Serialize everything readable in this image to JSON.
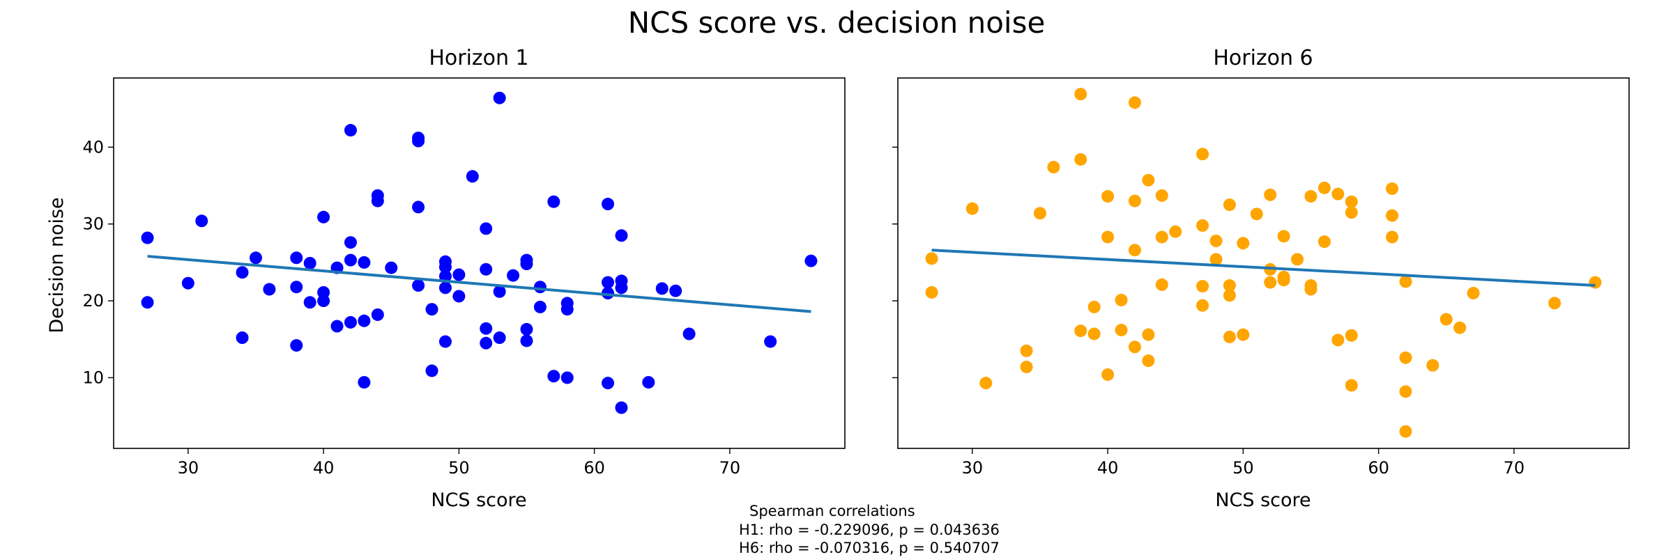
{
  "figure": {
    "title": "NCS score vs. decision noise",
    "footnote": [
      "Spearman correlations",
      "H1: rho = -0.229096, p = 0.043636",
      "H6: rho = -0.070316, p = 0.540707"
    ]
  },
  "chart_data": [
    {
      "type": "scatter",
      "title": "Horizon 1",
      "xlabel": "NCS score",
      "ylabel": "Decision noise",
      "xlim": [
        24.5,
        78.5
      ],
      "ylim": [
        0.8,
        49.0
      ],
      "xticks": [
        30,
        40,
        50,
        60,
        70
      ],
      "yticks": [
        10,
        20,
        30,
        40
      ],
      "point_color": "#0000ff",
      "trend_color": "#1f77b4",
      "trend": {
        "x": [
          27,
          76
        ],
        "y": [
          25.8,
          18.6
        ]
      },
      "points": [
        [
          27,
          28.2
        ],
        [
          27,
          19.8
        ],
        [
          30,
          22.3
        ],
        [
          31,
          30.4
        ],
        [
          34,
          23.7
        ],
        [
          34,
          15.2
        ],
        [
          35,
          25.6
        ],
        [
          36,
          21.5
        ],
        [
          38,
          25.6
        ],
        [
          38,
          21.8
        ],
        [
          38,
          14.2
        ],
        [
          39,
          24.9
        ],
        [
          39,
          19.8
        ],
        [
          40,
          30.9
        ],
        [
          40,
          21.1
        ],
        [
          40,
          20.0
        ],
        [
          41,
          24.3
        ],
        [
          41,
          16.7
        ],
        [
          42,
          42.2
        ],
        [
          42,
          27.6
        ],
        [
          42,
          25.3
        ],
        [
          42,
          17.2
        ],
        [
          43,
          25.0
        ],
        [
          43,
          17.4
        ],
        [
          43,
          9.4
        ],
        [
          44,
          33.7
        ],
        [
          44,
          33.0
        ],
        [
          44,
          18.2
        ],
        [
          45,
          24.3
        ],
        [
          47,
          41.2
        ],
        [
          47,
          40.8
        ],
        [
          47,
          32.2
        ],
        [
          47,
          22.0
        ],
        [
          48,
          18.9
        ],
        [
          48,
          10.9
        ],
        [
          49,
          25.1
        ],
        [
          49,
          24.4
        ],
        [
          49,
          23.2
        ],
        [
          49,
          21.7
        ],
        [
          49,
          14.7
        ],
        [
          50,
          23.4
        ],
        [
          50,
          20.6
        ],
        [
          51,
          36.2
        ],
        [
          52,
          29.4
        ],
        [
          52,
          24.1
        ],
        [
          52,
          16.4
        ],
        [
          52,
          14.5
        ],
        [
          53,
          46.4
        ],
        [
          53,
          21.2
        ],
        [
          53,
          15.2
        ],
        [
          54,
          23.3
        ],
        [
          55,
          25.3
        ],
        [
          55,
          24.8
        ],
        [
          55,
          16.3
        ],
        [
          55,
          14.8
        ],
        [
          56,
          21.8
        ],
        [
          56,
          19.2
        ],
        [
          57,
          32.9
        ],
        [
          57,
          10.2
        ],
        [
          58,
          19.7
        ],
        [
          58,
          18.9
        ],
        [
          58,
          10.0
        ],
        [
          61,
          32.6
        ],
        [
          61,
          22.4
        ],
        [
          61,
          21.0
        ],
        [
          61,
          9.3
        ],
        [
          62,
          28.5
        ],
        [
          62,
          22.6
        ],
        [
          62,
          21.7
        ],
        [
          62,
          6.1
        ],
        [
          64,
          9.4
        ],
        [
          65,
          21.6
        ],
        [
          66,
          21.3
        ],
        [
          67,
          15.7
        ],
        [
          73,
          14.7
        ],
        [
          76,
          25.2
        ]
      ]
    },
    {
      "type": "scatter",
      "title": "Horizon 6",
      "xlabel": "NCS score",
      "ylabel": "",
      "xlim": [
        24.5,
        78.5
      ],
      "ylim": [
        0.8,
        49.0
      ],
      "xticks": [
        30,
        40,
        50,
        60,
        70
      ],
      "yticks": [
        10,
        20,
        30,
        40
      ],
      "point_color": "#ffa500",
      "trend_color": "#1f77b4",
      "trend": {
        "x": [
          27,
          76
        ],
        "y": [
          26.6,
          22.0
        ]
      },
      "points": [
        [
          27,
          25.5
        ],
        [
          27,
          21.1
        ],
        [
          30,
          32.0
        ],
        [
          31,
          9.3
        ],
        [
          34,
          13.5
        ],
        [
          34,
          11.4
        ],
        [
          35,
          31.4
        ],
        [
          36,
          37.4
        ],
        [
          38,
          46.9
        ],
        [
          38,
          38.4
        ],
        [
          38,
          16.1
        ],
        [
          39,
          19.2
        ],
        [
          39,
          15.7
        ],
        [
          40,
          33.6
        ],
        [
          40,
          28.3
        ],
        [
          40,
          10.4
        ],
        [
          41,
          20.1
        ],
        [
          41,
          16.2
        ],
        [
          42,
          45.8
        ],
        [
          42,
          33.0
        ],
        [
          42,
          26.6
        ],
        [
          42,
          14.0
        ],
        [
          43,
          35.7
        ],
        [
          43,
          15.6
        ],
        [
          43,
          12.2
        ],
        [
          44,
          33.7
        ],
        [
          44,
          28.3
        ],
        [
          44,
          22.1
        ],
        [
          45,
          29.0
        ],
        [
          47,
          39.1
        ],
        [
          47,
          29.8
        ],
        [
          47,
          21.9
        ],
        [
          47,
          19.4
        ],
        [
          48,
          27.8
        ],
        [
          48,
          25.4
        ],
        [
          49,
          32.5
        ],
        [
          49,
          22.0
        ],
        [
          49,
          20.7
        ],
        [
          49,
          15.3
        ],
        [
          50,
          27.5
        ],
        [
          50,
          15.6
        ],
        [
          51,
          31.3
        ],
        [
          52,
          33.8
        ],
        [
          52,
          24.1
        ],
        [
          52,
          22.4
        ],
        [
          53,
          28.4
        ],
        [
          53,
          23.1
        ],
        [
          53,
          22.7
        ],
        [
          54,
          25.4
        ],
        [
          55,
          33.6
        ],
        [
          55,
          22.0
        ],
        [
          55,
          21.5
        ],
        [
          56,
          34.7
        ],
        [
          56,
          27.7
        ],
        [
          57,
          33.9
        ],
        [
          57,
          14.9
        ],
        [
          58,
          32.9
        ],
        [
          58,
          31.5
        ],
        [
          58,
          15.5
        ],
        [
          58,
          9.0
        ],
        [
          61,
          34.6
        ],
        [
          61,
          31.1
        ],
        [
          61,
          28.3
        ],
        [
          62,
          22.5
        ],
        [
          62,
          12.6
        ],
        [
          62,
          8.2
        ],
        [
          62,
          3.0
        ],
        [
          64,
          11.6
        ],
        [
          65,
          17.6
        ],
        [
          66,
          16.5
        ],
        [
          67,
          21.0
        ],
        [
          73,
          19.7
        ],
        [
          76,
          22.4
        ]
      ]
    }
  ]
}
